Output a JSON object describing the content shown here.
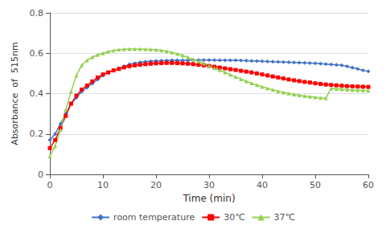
{
  "chart_data": {
    "type": "line",
    "xlabel": "Time (min)",
    "ylabel": "Absorbance  of  515nm",
    "xlim": [
      0,
      60
    ],
    "ylim": [
      0,
      0.8
    ],
    "xticks": [
      0,
      10,
      20,
      30,
      40,
      50,
      60
    ],
    "yticks": [
      0,
      0.2,
      0.4,
      0.6,
      0.8
    ],
    "grid": true,
    "legend": "bottom",
    "x": [
      0,
      1,
      2,
      3,
      4,
      5,
      6,
      7,
      8,
      9,
      10,
      11,
      12,
      13,
      14,
      15,
      16,
      17,
      18,
      19,
      20,
      21,
      22,
      23,
      24,
      25,
      26,
      27,
      28,
      29,
      30,
      31,
      32,
      33,
      34,
      35,
      36,
      37,
      38,
      39,
      40,
      41,
      42,
      43,
      44,
      45,
      46,
      47,
      48,
      49,
      50,
      51,
      52,
      53,
      54,
      55,
      56,
      57,
      58,
      59,
      60
    ],
    "series": [
      {
        "name": "room temperature",
        "color": "#4472C4",
        "marker": "diamond",
        "values": [
          0.17,
          0.2,
          0.25,
          0.3,
          0.35,
          0.38,
          0.41,
          0.43,
          0.45,
          0.47,
          0.49,
          0.505,
          0.515,
          0.525,
          0.535,
          0.545,
          0.55,
          0.555,
          0.558,
          0.56,
          0.562,
          0.563,
          0.564,
          0.565,
          0.565,
          0.565,
          0.565,
          0.566,
          0.566,
          0.566,
          0.566,
          0.566,
          0.565,
          0.565,
          0.565,
          0.565,
          0.564,
          0.563,
          0.562,
          0.561,
          0.56,
          0.559,
          0.558,
          0.557,
          0.556,
          0.555,
          0.554,
          0.553,
          0.552,
          0.551,
          0.55,
          0.548,
          0.546,
          0.544,
          0.542,
          0.54,
          0.535,
          0.528,
          0.522,
          0.515,
          0.51
        ]
      },
      {
        "name": "30℃",
        "color": "#FF0000",
        "marker": "square",
        "values": [
          0.13,
          0.17,
          0.23,
          0.29,
          0.35,
          0.39,
          0.42,
          0.44,
          0.46,
          0.48,
          0.495,
          0.505,
          0.515,
          0.522,
          0.53,
          0.536,
          0.54,
          0.543,
          0.546,
          0.548,
          0.55,
          0.551,
          0.552,
          0.552,
          0.551,
          0.55,
          0.548,
          0.546,
          0.543,
          0.54,
          0.537,
          0.533,
          0.529,
          0.525,
          0.521,
          0.517,
          0.513,
          0.509,
          0.505,
          0.5,
          0.495,
          0.49,
          0.485,
          0.48,
          0.475,
          0.47,
          0.466,
          0.462,
          0.458,
          0.455,
          0.451,
          0.448,
          0.445,
          0.443,
          0.441,
          0.439,
          0.437,
          0.436,
          0.435,
          0.434,
          0.433
        ]
      },
      {
        "name": "37℃",
        "color": "#92D050",
        "marker": "triangle",
        "values": [
          0.09,
          0.14,
          0.22,
          0.32,
          0.41,
          0.49,
          0.54,
          0.565,
          0.58,
          0.592,
          0.6,
          0.608,
          0.614,
          0.618,
          0.62,
          0.621,
          0.621,
          0.621,
          0.62,
          0.619,
          0.617,
          0.614,
          0.61,
          0.604,
          0.597,
          0.589,
          0.58,
          0.57,
          0.56,
          0.549,
          0.538,
          0.527,
          0.516,
          0.505,
          0.494,
          0.483,
          0.472,
          0.462,
          0.452,
          0.443,
          0.434,
          0.426,
          0.419,
          0.412,
          0.406,
          0.401,
          0.396,
          0.392,
          0.388,
          0.385,
          0.382,
          0.379,
          0.377,
          0.426,
          0.424,
          0.422,
          0.42,
          0.418,
          0.417,
          0.416,
          0.415
        ]
      }
    ]
  }
}
